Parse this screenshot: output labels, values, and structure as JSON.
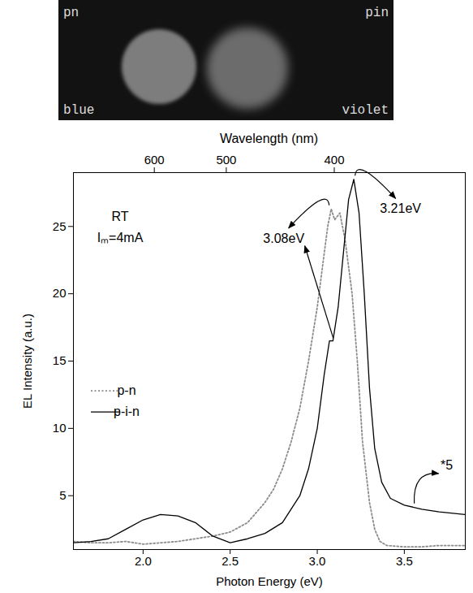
{
  "photo": {
    "labels": {
      "top_left": "pn",
      "top_right": "pin",
      "bottom_left": "blue",
      "bottom_right": "violet"
    }
  },
  "chart_data": {
    "type": "line",
    "xlabel": "Photon Energy (eV)",
    "ylabel": "EL Intensity (a.u.)",
    "x2label": "Wavelength (nm)",
    "xlim": [
      1.6,
      3.85
    ],
    "xticks": [
      {
        "value": 2,
        "label": "2.0"
      },
      {
        "value": 2.5,
        "label": "2.5"
      },
      {
        "value": 3,
        "label": "3.0"
      },
      {
        "value": 3.5,
        "label": "3.5"
      }
    ],
    "x2lim": [
      775,
      322
    ],
    "x2ticks": [
      600,
      500,
      400
    ],
    "ylim": [
      1,
      29
    ],
    "yticks": [
      5,
      10,
      15,
      20,
      25
    ],
    "legend": "left",
    "notes": [
      "RT",
      "Iₘ=4mA"
    ],
    "annotations": [
      {
        "text": "3.08eV",
        "x": 3.08,
        "series": [
          "p-n",
          "p-i-n"
        ]
      },
      {
        "text": "3.21eV",
        "x": 3.21,
        "series": [
          "p-i-n"
        ]
      },
      {
        "text": "*5",
        "x": 3.55,
        "series": [
          "p-i-n"
        ]
      }
    ],
    "series": [
      {
        "name": "p-n",
        "color": "#8c8c8c",
        "line_style": "dotted",
        "x": [
          1.6,
          1.7,
          1.8,
          1.9,
          2.0,
          2.1,
          2.2,
          2.3,
          2.4,
          2.5,
          2.6,
          2.7,
          2.75,
          2.8,
          2.85,
          2.9,
          2.95,
          3.0,
          3.03,
          3.06,
          3.08,
          3.1,
          3.13,
          3.16,
          3.2,
          3.23,
          3.26,
          3.3,
          3.33,
          3.36,
          3.4,
          3.5,
          3.6,
          3.7,
          3.85
        ],
        "values": [
          1.6,
          1.5,
          1.5,
          1.6,
          1.4,
          1.5,
          1.6,
          1.8,
          2.0,
          2.3,
          3.0,
          4.5,
          5.5,
          7.0,
          9.0,
          11.5,
          15.0,
          19.0,
          22.0,
          25.0,
          26.3,
          25.5,
          26.0,
          24.0,
          20.0,
          15.0,
          9.0,
          4.5,
          2.5,
          1.6,
          1.3,
          1.2,
          1.2,
          1.3,
          1.3
        ]
      },
      {
        "name": "p-i-n",
        "color": "#000000",
        "line_style": "solid",
        "x": [
          1.6,
          1.7,
          1.8,
          1.9,
          2.0,
          2.1,
          2.2,
          2.3,
          2.4,
          2.5,
          2.6,
          2.7,
          2.8,
          2.9,
          2.95,
          3.0,
          3.04,
          3.07,
          3.09,
          3.12,
          3.15,
          3.18,
          3.21,
          3.24,
          3.27,
          3.3,
          3.33,
          3.37,
          3.42,
          3.5,
          3.6,
          3.7,
          3.85
        ],
        "values": [
          1.5,
          1.6,
          1.8,
          2.5,
          3.2,
          3.6,
          3.5,
          3.0,
          2.0,
          1.5,
          1.8,
          2.2,
          3.0,
          5.0,
          7.0,
          10.0,
          14.0,
          16.5,
          16.5,
          19.0,
          23.0,
          27.0,
          28.5,
          26.0,
          20.0,
          13.0,
          8.5,
          6.0,
          4.8,
          4.3,
          4.0,
          3.8,
          3.6
        ]
      }
    ]
  }
}
